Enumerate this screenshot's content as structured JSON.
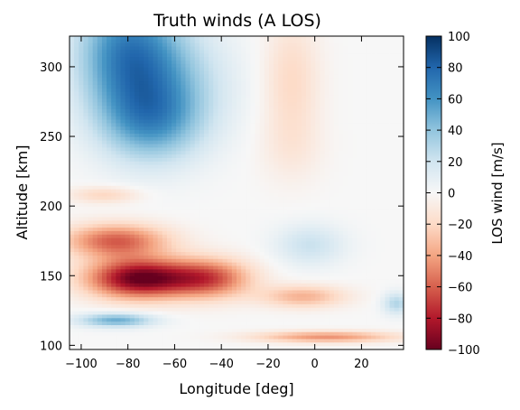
{
  "chart_data": {
    "type": "heatmap",
    "title": "Truth winds (A LOS)",
    "xlabel": "Longitude [deg]",
    "ylabel": "Altitude [km]",
    "colorbar_label": "LOS wind [m/s]",
    "xlim": [
      -105,
      38
    ],
    "ylim": [
      97,
      322
    ],
    "xticks": [
      -100,
      -80,
      -60,
      -40,
      -20,
      0,
      20
    ],
    "yticks": [
      100,
      150,
      200,
      250,
      300
    ],
    "clim": [
      -100,
      100
    ],
    "cticks": [
      100,
      80,
      60,
      40,
      20,
      0,
      -20,
      -40,
      -60,
      -80,
      -100
    ],
    "colormap": "RdBu",
    "color_stops": [
      "#67001f",
      "#b2182b",
      "#d6604d",
      "#f4a582",
      "#fddbc7",
      "#f7f7f7",
      "#d1e5f0",
      "#92c5de",
      "#4393c3",
      "#2166ac",
      "#053061"
    ],
    "grid": false,
    "features": [
      {
        "lon": -80,
        "alt": 310,
        "value": 65,
        "dlon": 22,
        "dalt": 45
      },
      {
        "lon": -70,
        "alt": 260,
        "value": 45,
        "dlon": 22,
        "dalt": 30
      },
      {
        "lon": -60,
        "alt": 290,
        "value": 25,
        "dlon": 25,
        "dalt": 40
      },
      {
        "lon": -10,
        "alt": 290,
        "value": -20,
        "dlon": 12,
        "dalt": 45
      },
      {
        "lon": -10,
        "alt": 240,
        "value": -8,
        "dlon": 14,
        "dalt": 25
      },
      {
        "lon": -85,
        "alt": 175,
        "value": -60,
        "dlon": 22,
        "dalt": 12
      },
      {
        "lon": -75,
        "alt": 148,
        "value": -100,
        "dlon": 22,
        "dalt": 14
      },
      {
        "lon": -45,
        "alt": 148,
        "value": -60,
        "dlon": 18,
        "dalt": 14
      },
      {
        "lon": -5,
        "alt": 135,
        "value": -35,
        "dlon": 18,
        "dalt": 8
      },
      {
        "lon": -2,
        "alt": 172,
        "value": 22,
        "dlon": 15,
        "dalt": 15
      },
      {
        "lon": -85,
        "alt": 118,
        "value": 50,
        "dlon": 16,
        "dalt": 5
      },
      {
        "lon": 5,
        "alt": 106,
        "value": -45,
        "dlon": 30,
        "dalt": 4
      },
      {
        "lon": 35,
        "alt": 130,
        "value": 30,
        "dlon": 6,
        "dalt": 8
      },
      {
        "lon": -90,
        "alt": 208,
        "value": -22,
        "dlon": 15,
        "dalt": 6
      }
    ]
  }
}
